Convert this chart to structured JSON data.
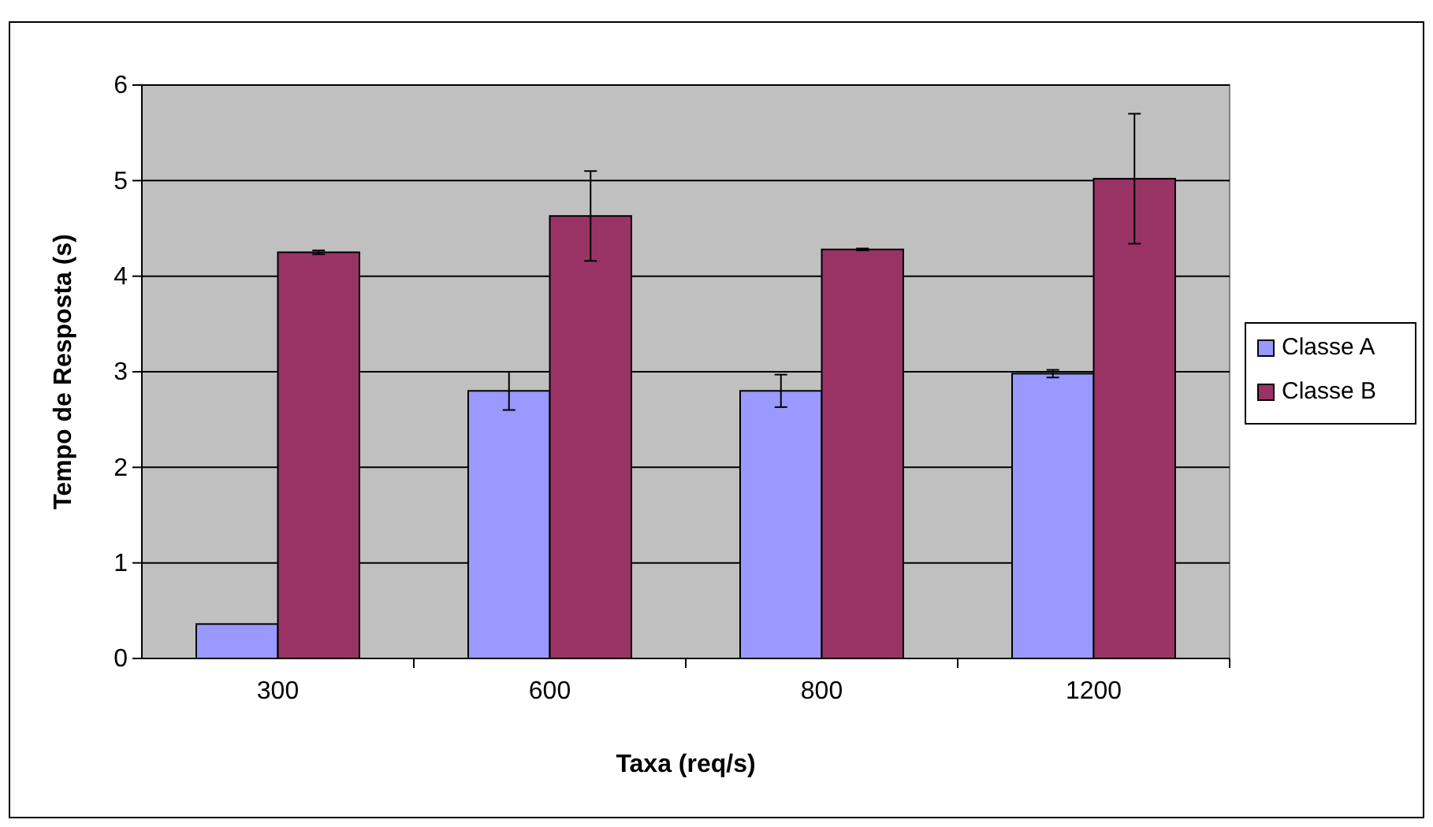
{
  "chart_data": {
    "type": "bar",
    "xlabel": "Taxa (req/s)",
    "ylabel": "Tempo de Resposta (s)",
    "categories": [
      "300",
      "600",
      "800",
      "1200"
    ],
    "series": [
      {
        "name": "Classe A",
        "color": "#9999ff",
        "values": [
          0.36,
          2.8,
          2.8,
          2.98
        ],
        "errors": [
          null,
          0.2,
          0.17,
          0.04
        ]
      },
      {
        "name": "Classe B",
        "color": "#993366",
        "values": [
          4.25,
          4.63,
          4.28,
          5.02
        ],
        "errors": [
          0.02,
          0.47,
          0.01,
          0.68
        ]
      }
    ],
    "ylim": [
      0,
      6
    ],
    "yticks": [
      0,
      1,
      2,
      3,
      4,
      5,
      6
    ],
    "grid": "y",
    "legend": "right"
  }
}
